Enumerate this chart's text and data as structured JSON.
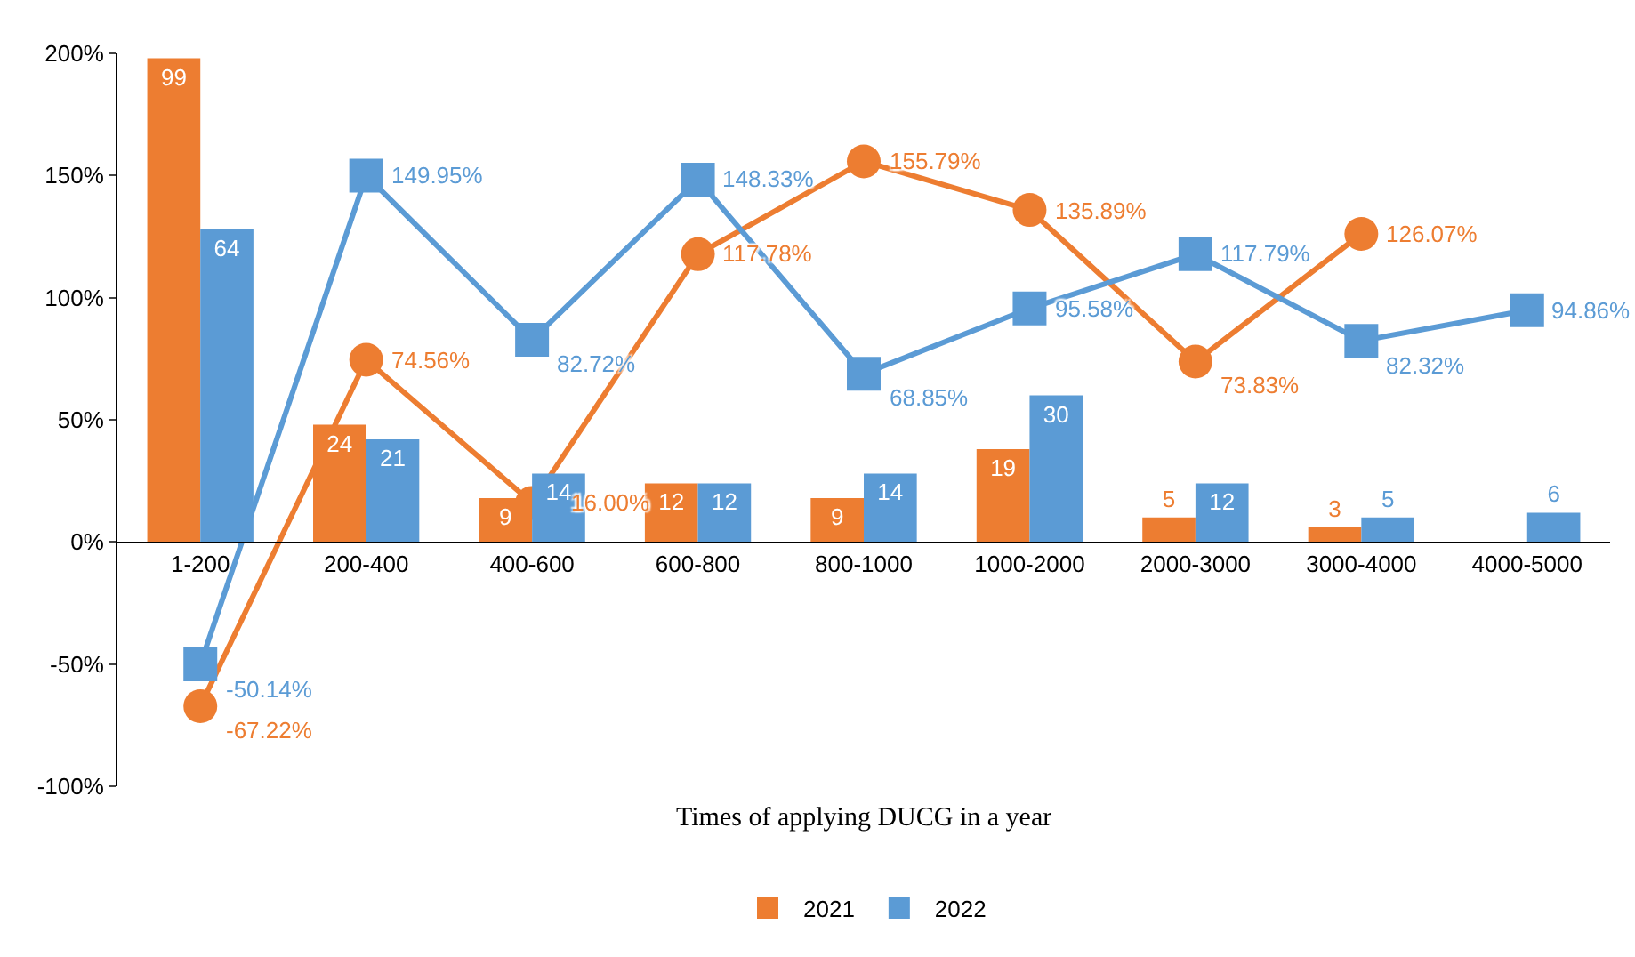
{
  "chart_data": {
    "type": "bar",
    "xlabel": "Times of applying DUCG in a year",
    "categories": [
      "1-200",
      "200-400",
      "400-600",
      "600-800",
      "800-1000",
      "1000-2000",
      "2000-3000",
      "3000-4000",
      "4000-5000"
    ],
    "series": [
      {
        "name": "2021",
        "type": "bar",
        "axis": "y2",
        "color": "#ed7d31",
        "values": [
          99,
          24,
          9,
          12,
          9,
          19,
          5,
          3,
          null
        ],
        "value_labels": [
          "99",
          "24",
          "9",
          "12",
          "9",
          "19",
          "5",
          "3",
          null
        ]
      },
      {
        "name": "2022",
        "type": "bar",
        "axis": "y2",
        "color": "#5b9bd5",
        "values": [
          64,
          21,
          14,
          12,
          14,
          30,
          12,
          5,
          6
        ],
        "value_labels": [
          "64",
          "21",
          "14",
          "12",
          "14",
          "30",
          "12",
          "5",
          "6"
        ]
      },
      {
        "type": "line",
        "color": "#ed7d31",
        "marker": "circle",
        "values": [
          -67.22,
          74.56,
          16.0,
          117.78,
          155.79,
          135.89,
          73.83,
          126.07,
          null
        ],
        "value_labels": [
          "-67.22%",
          "74.56%",
          "16.00%",
          "117.78%",
          "155.79%",
          "135.89%",
          "73.83%",
          "126.07%",
          null
        ]
      },
      {
        "type": "line",
        "color": "#5b9bd5",
        "marker": "square",
        "values": [
          -50.14,
          149.95,
          82.72,
          148.33,
          68.85,
          95.58,
          117.79,
          82.32,
          94.86
        ],
        "value_labels": [
          "-50.14%",
          "149.95%",
          "82.72%",
          "148.33%",
          "68.85%",
          "95.58%",
          "117.79%",
          "82.32%",
          "94.86%"
        ]
      }
    ],
    "ylim": [
      -100,
      200
    ],
    "yticks": [
      {
        "value": -100,
        "label": "-100%"
      },
      {
        "value": -50,
        "label": "-50%"
      },
      {
        "value": 0,
        "label": "0%"
      },
      {
        "value": 50,
        "label": "50%"
      },
      {
        "value": 100,
        "label": "100%"
      },
      {
        "value": 150,
        "label": "150%"
      },
      {
        "value": 200,
        "label": "200%"
      }
    ],
    "y2lim": [
      -50,
      100
    ],
    "grid": false,
    "legend": "bottom"
  }
}
